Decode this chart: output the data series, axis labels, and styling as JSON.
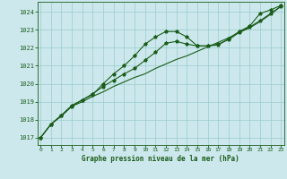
{
  "title": "Graphe pression niveau de la mer (hPa)",
  "background_color": "#cce8ec",
  "grid_color": "#99cccc",
  "line_color": "#1a5c1a",
  "spine_color": "#1a5c1a",
  "x_ticks": [
    0,
    1,
    2,
    3,
    4,
    5,
    6,
    7,
    8,
    9,
    10,
    11,
    12,
    13,
    14,
    15,
    16,
    17,
    18,
    19,
    20,
    21,
    22,
    23
  ],
  "y_ticks": [
    1017,
    1018,
    1019,
    1020,
    1021,
    1022,
    1023,
    1024
  ],
  "ylim": [
    1016.6,
    1024.55
  ],
  "xlim": [
    -0.3,
    23.3
  ],
  "line1_x": [
    0,
    1,
    2,
    3,
    4,
    5,
    6,
    7,
    8,
    9,
    10,
    11,
    12,
    13,
    14,
    15,
    16,
    17,
    18,
    19,
    20,
    21,
    22,
    23
  ],
  "line1_y": [
    1017.0,
    1017.75,
    1018.2,
    1018.75,
    1019.0,
    1019.3,
    1019.55,
    1019.85,
    1020.1,
    1020.35,
    1020.55,
    1020.85,
    1021.1,
    1021.35,
    1021.55,
    1021.8,
    1022.05,
    1022.3,
    1022.55,
    1022.85,
    1023.1,
    1023.45,
    1023.85,
    1024.3
  ],
  "line2_x": [
    0,
    1,
    2,
    3,
    4,
    5,
    6,
    7,
    8,
    9,
    10,
    11,
    12,
    13,
    14,
    15,
    16,
    17,
    18,
    19,
    20,
    21,
    22,
    23
  ],
  "line2_y": [
    1017.0,
    1017.75,
    1018.25,
    1018.8,
    1019.1,
    1019.45,
    1019.85,
    1020.2,
    1020.55,
    1020.85,
    1021.3,
    1021.75,
    1022.25,
    1022.35,
    1022.2,
    1022.1,
    1022.1,
    1022.2,
    1022.45,
    1022.85,
    1023.15,
    1023.5,
    1023.9,
    1024.3
  ],
  "line3_x": [
    0,
    1,
    2,
    3,
    4,
    5,
    6,
    7,
    8,
    9,
    10,
    11,
    12,
    13,
    14,
    15,
    16,
    17,
    18,
    19,
    20,
    21,
    22,
    23
  ],
  "line3_y": [
    1017.0,
    1017.75,
    1018.25,
    1018.75,
    1019.1,
    1019.4,
    1020.0,
    1020.55,
    1021.0,
    1021.55,
    1022.2,
    1022.6,
    1022.9,
    1022.9,
    1022.6,
    1022.1,
    1022.1,
    1022.15,
    1022.5,
    1022.9,
    1023.2,
    1023.9,
    1024.1,
    1024.35
  ]
}
